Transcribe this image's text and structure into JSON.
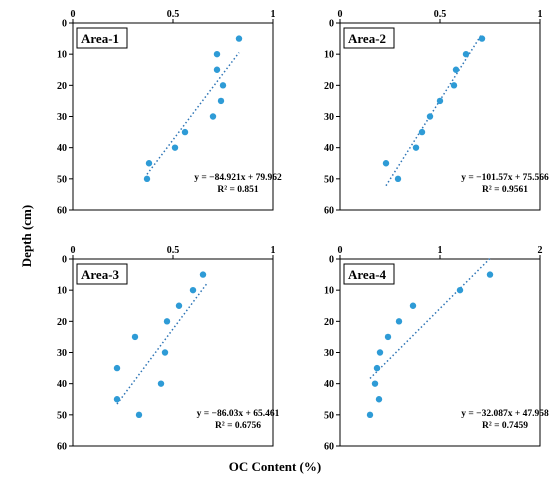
{
  "y_axis_label": "Depth (cm)",
  "x_axis_label": "OC Content (%)",
  "colors": {
    "point": "#2e9bd6",
    "trend": "#2e75b6",
    "frame": "#000000"
  },
  "chart_data": [
    {
      "type": "scatter",
      "title": "Area-1",
      "xlim": [
        0,
        1
      ],
      "xticks": [
        "0",
        "0.5",
        "1"
      ],
      "ylim": [
        0,
        60
      ],
      "yticks": [
        "0",
        "10",
        "20",
        "30",
        "40",
        "50",
        "60"
      ],
      "points": [
        {
          "x": 0.83,
          "y": 5
        },
        {
          "x": 0.72,
          "y": 10
        },
        {
          "x": 0.72,
          "y": 15
        },
        {
          "x": 0.75,
          "y": 20
        },
        {
          "x": 0.74,
          "y": 25
        },
        {
          "x": 0.7,
          "y": 30
        },
        {
          "x": 0.56,
          "y": 35
        },
        {
          "x": 0.51,
          "y": 40
        },
        {
          "x": 0.38,
          "y": 45
        },
        {
          "x": 0.37,
          "y": 50
        }
      ],
      "trendline": {
        "slope": -84.921,
        "intercept": 79.962,
        "x_range": [
          0.37,
          0.83
        ]
      },
      "equation": "y = −84.921x + 79.962",
      "r_squared": "R² = 0.851"
    },
    {
      "type": "scatter",
      "title": "Area-2",
      "xlim": [
        0,
        1
      ],
      "xticks": [
        "0",
        "0.5",
        "1"
      ],
      "ylim": [
        0,
        60
      ],
      "yticks": [
        "0",
        "10",
        "20",
        "30",
        "40",
        "50",
        "60"
      ],
      "points": [
        {
          "x": 0.71,
          "y": 5
        },
        {
          "x": 0.63,
          "y": 10
        },
        {
          "x": 0.58,
          "y": 15
        },
        {
          "x": 0.57,
          "y": 20
        },
        {
          "x": 0.5,
          "y": 25
        },
        {
          "x": 0.45,
          "y": 30
        },
        {
          "x": 0.41,
          "y": 35
        },
        {
          "x": 0.38,
          "y": 40
        },
        {
          "x": 0.23,
          "y": 45
        },
        {
          "x": 0.29,
          "y": 50
        }
      ],
      "trendline": {
        "slope": -101.57,
        "intercept": 75.566,
        "x_range": [
          0.23,
          0.71
        ]
      },
      "equation": "y = −101.57x + 75.566",
      "r_squared": "R² = 0.9561"
    },
    {
      "type": "scatter",
      "title": "Area-3",
      "xlim": [
        0,
        1
      ],
      "xticks": [
        "0",
        "0.5",
        "1"
      ],
      "ylim": [
        0,
        60
      ],
      "yticks": [
        "0",
        "10",
        "20",
        "30",
        "40",
        "50",
        "60"
      ],
      "points": [
        {
          "x": 0.65,
          "y": 5
        },
        {
          "x": 0.6,
          "y": 10
        },
        {
          "x": 0.53,
          "y": 15
        },
        {
          "x": 0.47,
          "y": 20
        },
        {
          "x": 0.31,
          "y": 25
        },
        {
          "x": 0.46,
          "y": 30
        },
        {
          "x": 0.22,
          "y": 35
        },
        {
          "x": 0.44,
          "y": 40
        },
        {
          "x": 0.22,
          "y": 45
        },
        {
          "x": 0.33,
          "y": 50
        }
      ],
      "trendline": {
        "slope": -86.03,
        "intercept": 65.461,
        "x_range": [
          0.22,
          0.67
        ]
      },
      "equation": "y = −86.03x + 65.461",
      "r_squared": "R² = 0.6756"
    },
    {
      "type": "scatter",
      "title": "Area-4",
      "xlim": [
        0,
        2
      ],
      "xticks": [
        "0",
        "1",
        "2"
      ],
      "ylim": [
        0,
        60
      ],
      "yticks": [
        "0",
        "10",
        "20",
        "30",
        "40",
        "50",
        "60"
      ],
      "points": [
        {
          "x": 1.5,
          "y": 5
        },
        {
          "x": 1.2,
          "y": 10
        },
        {
          "x": 0.73,
          "y": 15
        },
        {
          "x": 0.59,
          "y": 20
        },
        {
          "x": 0.48,
          "y": 25
        },
        {
          "x": 0.4,
          "y": 30
        },
        {
          "x": 0.37,
          "y": 35
        },
        {
          "x": 0.35,
          "y": 40
        },
        {
          "x": 0.39,
          "y": 45
        },
        {
          "x": 0.3,
          "y": 50
        }
      ],
      "trendline": {
        "slope": -32.087,
        "intercept": 47.958,
        "x_range": [
          0.3,
          1.5
        ]
      },
      "equation": "y = −32.087x + 47.958",
      "r_squared": "R² = 0.7459"
    }
  ]
}
